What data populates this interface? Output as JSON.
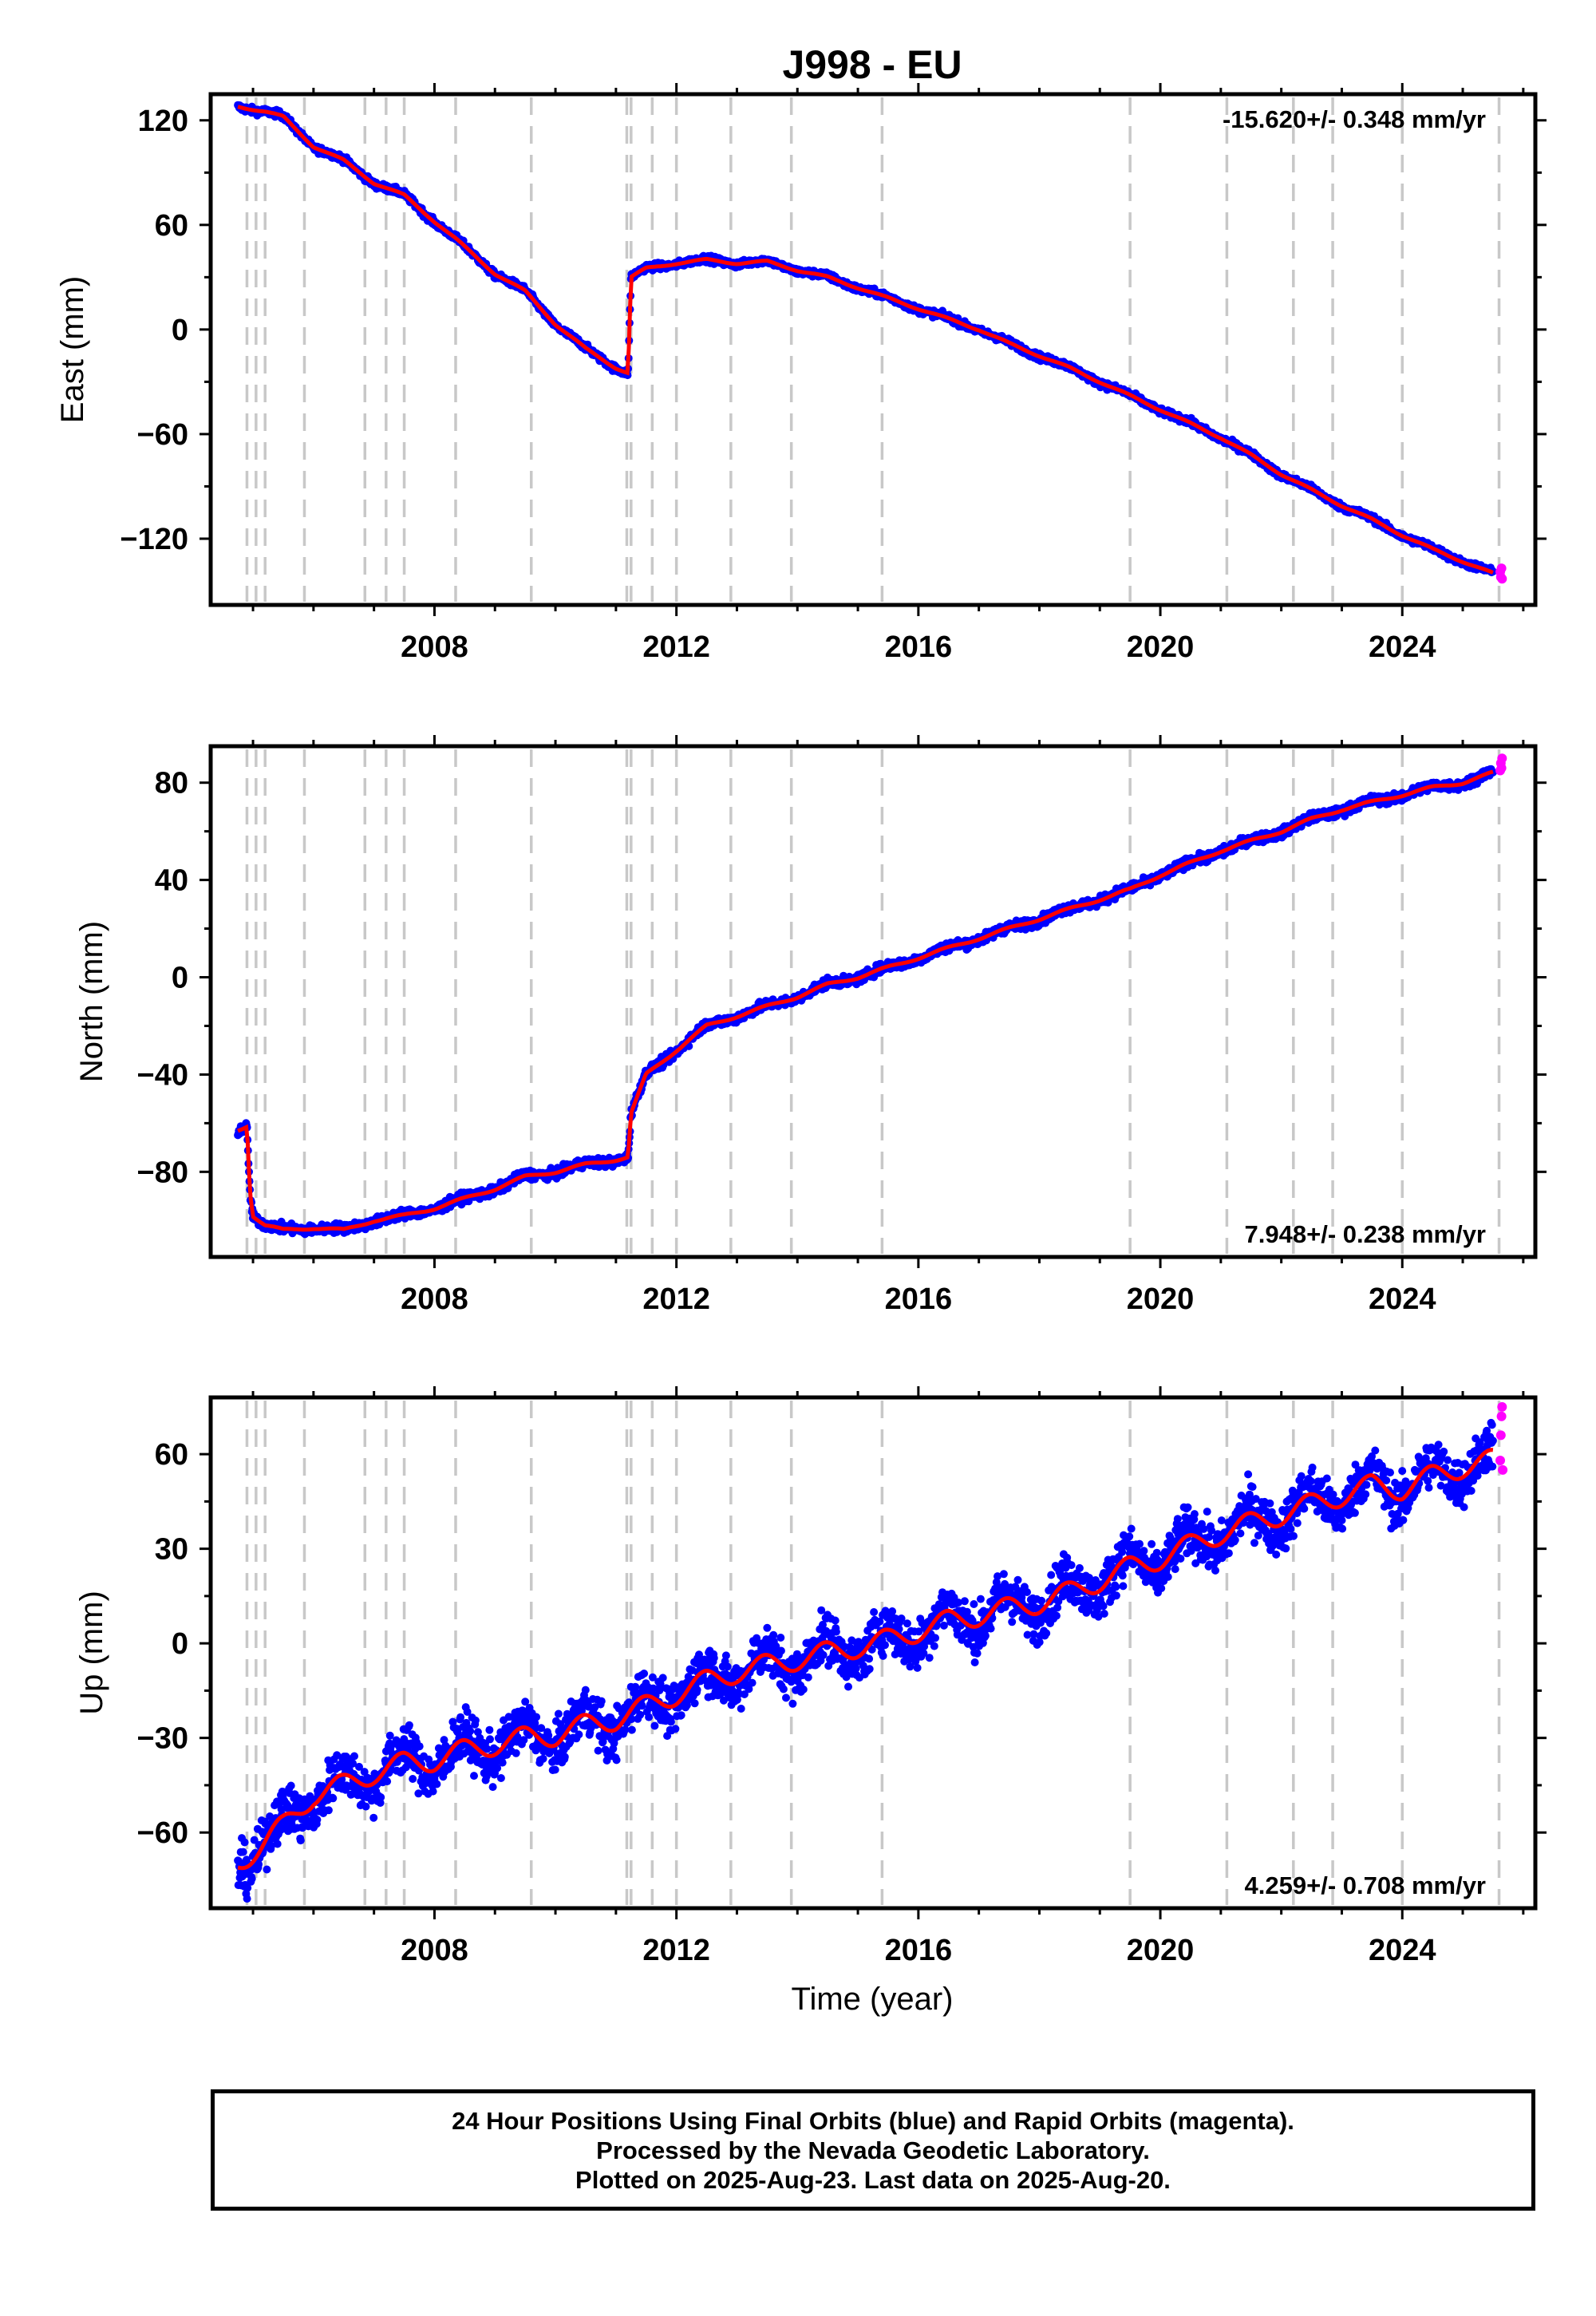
{
  "title": "J998 - EU",
  "xlabel": "Time (year)",
  "colors": {
    "final_orbits": "#0000ff",
    "rapid_orbits": "#ff00ff",
    "model": "#ff0000",
    "steps": "#c8c8c8"
  },
  "footer": {
    "line1": "24 Hour Positions Using Final Orbits (blue) and Rapid Orbits (magenta).",
    "line2": "Processed by the Nevada Geodetic Laboratory.",
    "line3": "Plotted on 2025-Aug-23. Last data on 2025-Aug-20."
  },
  "chart_data": [
    {
      "type": "scatter",
      "component": "East",
      "ylabel": "East (mm)",
      "rate_label": "-15.620+/- 0.348 mm/yr",
      "rate_position": "top-right",
      "xlim": [
        2004.3,
        2026.2
      ],
      "ylim": [
        -158,
        135
      ],
      "xticks": [
        2008,
        2012,
        2016,
        2020,
        2024
      ],
      "yticks": [
        120,
        60,
        0,
        -60,
        -120
      ],
      "step_epochs": [
        2004.9,
        2005.05,
        2005.2,
        2005.85,
        2006.85,
        2007.2,
        2007.5,
        2008.35,
        2009.6,
        2011.18,
        2011.25,
        2011.6,
        2012.0,
        2012.9,
        2013.9,
        2015.4,
        2019.5,
        2021.1,
        2022.2,
        2022.85,
        2024.0,
        2025.6
      ],
      "series": [
        {
          "name": "Final Orbits",
          "x": [
            2004.75,
            2005.2,
            2005.5,
            2006.0,
            2006.5,
            2007.0,
            2007.5,
            2008.0,
            2008.35,
            2009.0,
            2009.5,
            2010.0,
            2010.5,
            2011.0,
            2011.2,
            2011.25,
            2011.5,
            2012.0,
            2012.5,
            2013.0,
            2013.5,
            2014.0,
            2014.5,
            2015.0,
            2015.5,
            2016.0,
            2016.5,
            2017.0,
            2017.5,
            2018.0,
            2018.5,
            2019.0,
            2019.5,
            2020.0,
            2020.5,
            2021.0,
            2021.5,
            2022.0,
            2022.5,
            2023.0,
            2023.5,
            2024.0,
            2024.5,
            2025.0,
            2025.5
          ],
          "y": [
            128,
            125,
            122,
            105,
            97,
            84,
            77,
            62,
            52,
            32,
            22,
            3,
            -11,
            -22,
            -25,
            30,
            35,
            38,
            40,
            38,
            39,
            34,
            30,
            24,
            18,
            12,
            6,
            0,
            -8,
            -15,
            -22,
            -30,
            -38,
            -46,
            -54,
            -62,
            -72,
            -83,
            -92,
            -101,
            -109,
            -118,
            -126,
            -133,
            -140
          ]
        },
        {
          "name": "Rapid Orbits",
          "x": [
            2025.62,
            2025.63,
            2025.64,
            2025.65
          ],
          "y": [
            -139,
            -142,
            -137,
            -143
          ]
        }
      ]
    },
    {
      "type": "scatter",
      "component": "North",
      "ylabel": "North (mm)",
      "rate_label": "7.948+/- 0.238 mm/yr",
      "rate_position": "bottom-right",
      "xlim": [
        2004.3,
        2026.2
      ],
      "ylim": [
        -115,
        95
      ],
      "xticks": [
        2008,
        2012,
        2016,
        2020,
        2024
      ],
      "yticks": [
        80,
        40,
        0,
        -40,
        -80
      ],
      "step_epochs": [
        2004.9,
        2005.05,
        2005.2,
        2005.85,
        2006.85,
        2007.2,
        2007.5,
        2008.35,
        2009.6,
        2011.18,
        2011.25,
        2011.6,
        2012.0,
        2012.9,
        2013.9,
        2015.4,
        2019.5,
        2021.1,
        2022.2,
        2022.85,
        2024.0,
        2025.6
      ],
      "series": [
        {
          "name": "Final Orbits",
          "x": [
            2004.75,
            2004.9,
            2004.95,
            2005.0,
            2005.2,
            2005.5,
            2006.0,
            2006.5,
            2007.0,
            2007.5,
            2008.0,
            2008.5,
            2009.0,
            2009.5,
            2010.0,
            2010.5,
            2011.0,
            2011.2,
            2011.25,
            2011.5,
            2012.0,
            2012.5,
            2013.0,
            2013.5,
            2014.0,
            2014.5,
            2015.0,
            2015.5,
            2016.0,
            2016.5,
            2017.0,
            2017.5,
            2018.0,
            2018.5,
            2019.0,
            2019.5,
            2020.0,
            2020.5,
            2021.0,
            2021.5,
            2022.0,
            2022.5,
            2023.0,
            2023.5,
            2024.0,
            2024.5,
            2025.0,
            2025.5
          ],
          "y": [
            -63,
            -61,
            -88,
            -98,
            -102,
            -104,
            -103,
            -104,
            -100,
            -98,
            -95,
            -91,
            -87,
            -82,
            -80,
            -77,
            -75,
            -74,
            -56,
            -40,
            -30,
            -20,
            -16,
            -12,
            -8,
            -3,
            0,
            4,
            8,
            12,
            16,
            20,
            24,
            28,
            32,
            36,
            42,
            47,
            52,
            56,
            60,
            65,
            69,
            72,
            75,
            78,
            80,
            84
          ]
        },
        {
          "name": "Rapid Orbits",
          "x": [
            2025.62,
            2025.63,
            2025.64,
            2025.65
          ],
          "y": [
            85,
            88,
            86,
            90
          ]
        }
      ]
    },
    {
      "type": "scatter",
      "component": "Up",
      "ylabel": "Up (mm)",
      "rate_label": "4.259+/- 0.708 mm/yr",
      "rate_position": "bottom-right",
      "xlim": [
        2004.3,
        2026.2
      ],
      "ylim": [
        -84,
        78
      ],
      "xticks": [
        2008,
        2012,
        2016,
        2020,
        2024
      ],
      "yticks": [
        60,
        30,
        0,
        -30,
        -60
      ],
      "step_epochs": [
        2004.9,
        2005.05,
        2005.2,
        2005.85,
        2006.85,
        2007.2,
        2007.5,
        2008.35,
        2009.6,
        2011.18,
        2011.25,
        2011.6,
        2012.0,
        2012.9,
        2013.9,
        2015.4,
        2019.5,
        2021.1,
        2022.2,
        2022.85,
        2024.0,
        2025.6
      ],
      "series": [
        {
          "name": "Final Orbits",
          "x": [
            2004.75,
            2005.0,
            2005.5,
            2006.0,
            2006.5,
            2007.0,
            2007.5,
            2008.0,
            2008.5,
            2009.0,
            2009.5,
            2010.0,
            2010.5,
            2011.0,
            2011.5,
            2012.0,
            2012.5,
            2013.0,
            2013.5,
            2014.0,
            2014.5,
            2015.0,
            2015.5,
            2016.0,
            2016.5,
            2017.0,
            2017.5,
            2018.0,
            2018.5,
            2019.0,
            2019.5,
            2020.0,
            2020.5,
            2021.0,
            2021.5,
            2022.0,
            2022.5,
            2023.0,
            2023.5,
            2024.0,
            2024.5,
            2025.0,
            2025.5
          ],
          "y": [
            -70,
            -66,
            -58,
            -48,
            -45,
            -41,
            -38,
            -37,
            -34,
            -32,
            -30,
            -29,
            -26,
            -24,
            -20,
            -16,
            -12,
            -9,
            -7,
            -5,
            -3,
            -1,
            1,
            4,
            7,
            9,
            11,
            13,
            16,
            20,
            24,
            27,
            31,
            35,
            38,
            41,
            44,
            47,
            50,
            49,
            53,
            56,
            58
          ]
        },
        {
          "name": "Rapid Orbits",
          "x": [
            2025.62,
            2025.63,
            2025.64,
            2025.65,
            2025.66
          ],
          "y": [
            58,
            66,
            72,
            75,
            55
          ]
        }
      ]
    }
  ]
}
